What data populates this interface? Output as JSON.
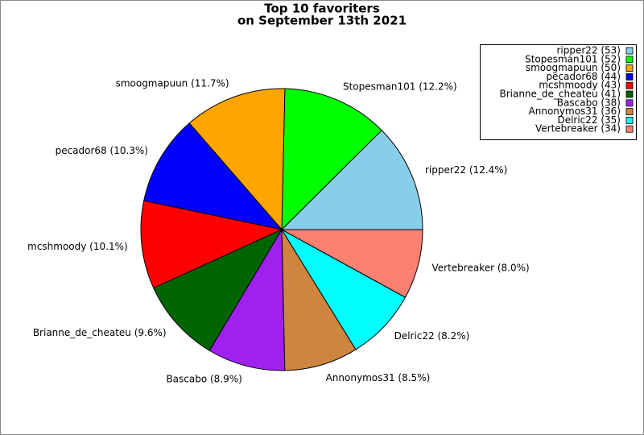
{
  "chart_data": {
    "type": "pie",
    "title": "Top 10 favoriters",
    "subtitle": "on September 13th 2021",
    "categories": [
      "ripper22",
      "Stopesman101",
      "smoogmapuun",
      "pecador68",
      "mcshmoody",
      "Brianne_de_cheateu",
      "Bascabo",
      "Annonymos31",
      "Delric22",
      "Vertebreaker"
    ],
    "values": [
      53,
      52,
      50,
      44,
      43,
      41,
      38,
      36,
      35,
      34
    ],
    "colors": [
      "#87ceeb",
      "#00ff00",
      "#ffa500",
      "#0000ff",
      "#ff0000",
      "#006400",
      "#a020f0",
      "#cd853f",
      "#00ffff",
      "#fa8072"
    ],
    "slice_labels": [
      "ripper22 (12.4%)",
      "Stopesman101 (12.2%)",
      "smoogmapuun (11.7%)",
      "pecador68 (10.3%)",
      "mcshmoody (10.1%)",
      "Brianne_de_cheateu (9.6%)",
      "Bascabo (8.9%)",
      "Annonymos31 (8.5%)",
      "Delric22 (8.2%)",
      "Vertebreaker (8.0%)"
    ],
    "legend_labels": [
      "ripper22 (53)",
      "Stopesman101 (52)",
      "smoogmapuun (50)",
      "pecador68 (44)",
      "mcshmoody (43)",
      "Brianne_de_cheateu (41)",
      "Bascabo (38)",
      "Annonymos31 (36)",
      "Delric22 (35)",
      "Vertebreaker (34)"
    ],
    "legend": "upper right"
  }
}
